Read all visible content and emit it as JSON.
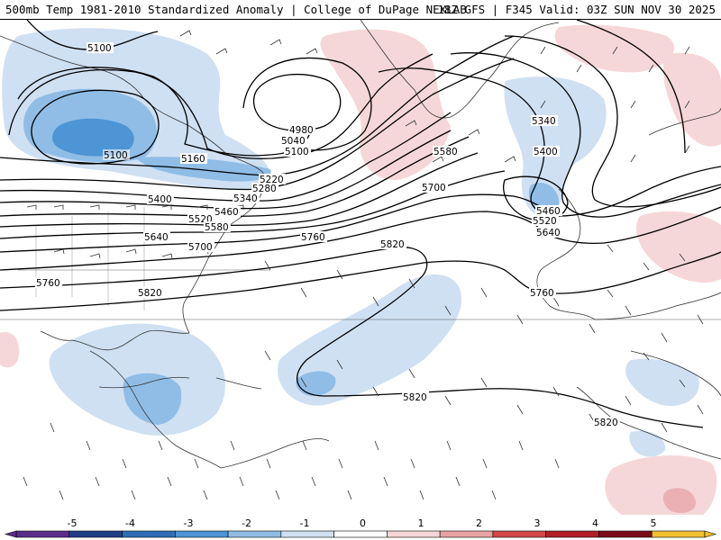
{
  "header": {
    "left_title": "500mb Temp 1981-2010 Standardized Anomaly | College of DuPage NEXLAB",
    "right_title": "18Z GFS | F345 Valid: 03Z SUN NOV 30 2025"
  },
  "contours": [
    {
      "label": "5100",
      "value": 5100
    },
    {
      "label": "5100",
      "value": 5100
    },
    {
      "label": "5100",
      "value": 5100
    },
    {
      "label": "4980",
      "value": 4980
    },
    {
      "label": "5040",
      "value": 5040
    },
    {
      "label": "5160",
      "value": 5160
    },
    {
      "label": "5220",
      "value": 5220
    },
    {
      "label": "5280",
      "value": 5280
    },
    {
      "label": "5340",
      "value": 5340
    },
    {
      "label": "5400",
      "value": 5400
    },
    {
      "label": "5460",
      "value": 5460
    },
    {
      "label": "5520",
      "value": 5520
    },
    {
      "label": "5580",
      "value": 5580
    },
    {
      "label": "5640",
      "value": 5640
    },
    {
      "label": "5700",
      "value": 5700
    },
    {
      "label": "5580",
      "value": 5580
    },
    {
      "label": "5700",
      "value": 5700
    },
    {
      "label": "5760",
      "value": 5760
    },
    {
      "label": "5760",
      "value": 5760
    },
    {
      "label": "5820",
      "value": 5820
    },
    {
      "label": "5820",
      "value": 5820
    },
    {
      "label": "5820",
      "value": 5820
    },
    {
      "label": "5820",
      "value": 5820
    },
    {
      "label": "5340",
      "value": 5340
    },
    {
      "label": "5400",
      "value": 5400
    },
    {
      "label": "5460",
      "value": 5460
    },
    {
      "label": "5520",
      "value": 5520
    },
    {
      "label": "5640",
      "value": 5640
    },
    {
      "label": "5760",
      "value": 5760
    }
  ],
  "legend": {
    "ticks": [
      "-5",
      "-4",
      "-3",
      "-2",
      "-1",
      "0",
      "1",
      "2",
      "3",
      "4",
      "5"
    ],
    "colors": [
      "#5a2d8a",
      "#1f3f86",
      "#2f6cb5",
      "#4d95d4",
      "#8fbde6",
      "#cfe0f2",
      "#ffffff",
      "#f5d6d6",
      "#e8a2a2",
      "#d24848",
      "#b01e28",
      "#7a0c1a",
      "#f0c030"
    ]
  },
  "colors": {
    "cold_light": "#cfe0f2",
    "cold_mid": "#8fbde6",
    "cold_strong": "#4d95d4",
    "warm_light": "#f6d7d9",
    "warm_mid": "#eab0b4"
  }
}
